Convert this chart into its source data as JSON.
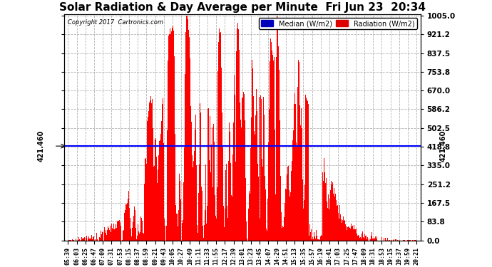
{
  "title": "Solar Radiation & Day Average per Minute  Fri Jun 23  20:34",
  "copyright_text": "Copyright 2017  Cartronics.com",
  "median_label": "421.460",
  "median_value": 421.46,
  "ymax": 1005.0,
  "ymin": 0.0,
  "yticks": [
    0.0,
    83.8,
    167.5,
    251.2,
    335.0,
    418.8,
    502.5,
    586.2,
    670.0,
    753.8,
    837.5,
    921.2,
    1005.0
  ],
  "legend_median_color": "#0000bb",
  "legend_radiation_color": "#dd0000",
  "bar_color": "#ff0000",
  "median_line_color": "#0000ff",
  "background_color": "#ffffff",
  "grid_color": "#aaaaaa",
  "title_fontsize": 11,
  "tick_labels": [
    "05:39",
    "06:03",
    "06:25",
    "06:47",
    "07:09",
    "07:31",
    "07:53",
    "08:15",
    "08:37",
    "08:59",
    "09:21",
    "09:43",
    "10:05",
    "10:27",
    "10:49",
    "11:11",
    "11:33",
    "11:55",
    "12:17",
    "12:39",
    "13:01",
    "13:23",
    "13:45",
    "14:07",
    "14:29",
    "14:51",
    "15:13",
    "15:35",
    "15:57",
    "16:19",
    "16:41",
    "17:03",
    "17:25",
    "17:47",
    "18:09",
    "18:31",
    "18:53",
    "19:15",
    "19:37",
    "19:59",
    "20:21"
  ],
  "n_points": 880
}
